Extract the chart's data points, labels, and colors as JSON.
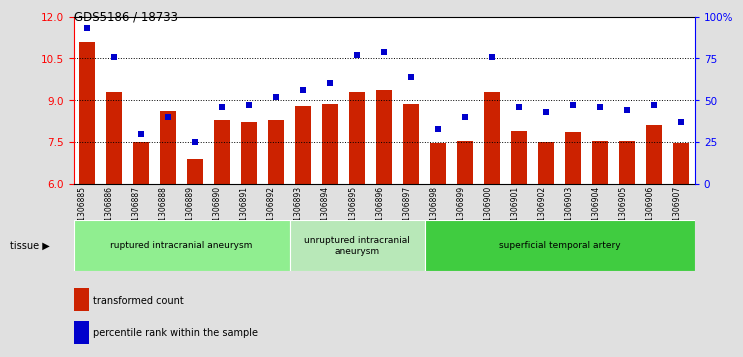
{
  "title": "GDS5186 / 18733",
  "samples": [
    "GSM1306885",
    "GSM1306886",
    "GSM1306887",
    "GSM1306888",
    "GSM1306889",
    "GSM1306890",
    "GSM1306891",
    "GSM1306892",
    "GSM1306893",
    "GSM1306894",
    "GSM1306895",
    "GSM1306896",
    "GSM1306897",
    "GSM1306898",
    "GSM1306899",
    "GSM1306900",
    "GSM1306901",
    "GSM1306902",
    "GSM1306903",
    "GSM1306904",
    "GSM1306905",
    "GSM1306906",
    "GSM1306907"
  ],
  "bar_values": [
    11.1,
    9.3,
    7.5,
    8.6,
    6.9,
    8.3,
    8.2,
    8.3,
    8.8,
    8.85,
    9.3,
    9.35,
    8.85,
    7.45,
    7.55,
    9.3,
    7.9,
    7.5,
    7.85,
    7.55,
    7.55,
    8.1,
    7.45
  ],
  "percentile_values": [
    93,
    76,
    30,
    40,
    25,
    46,
    47,
    52,
    56,
    60,
    77,
    79,
    64,
    33,
    40,
    76,
    46,
    43,
    47,
    46,
    44,
    47,
    37
  ],
  "groups": [
    {
      "label": "ruptured intracranial aneurysm",
      "start": 0,
      "end": 8,
      "color": "#90EE90"
    },
    {
      "label": "unruptured intracranial\naneurysm",
      "start": 8,
      "end": 13,
      "color": "#b8e8b8"
    },
    {
      "label": "superficial temporal artery",
      "start": 13,
      "end": 23,
      "color": "#40CC40"
    }
  ],
  "bar_color": "#CC2200",
  "dot_color": "#0000CC",
  "ylim_left": [
    6,
    12
  ],
  "ylim_right": [
    0,
    100
  ],
  "yticks_left": [
    6,
    7.5,
    9,
    10.5,
    12
  ],
  "yticks_right": [
    0,
    25,
    50,
    75,
    100
  ],
  "ytick_labels_right": [
    "0",
    "25",
    "50",
    "75",
    "100%"
  ],
  "grid_values": [
    7.5,
    9.0,
    10.5
  ],
  "background_color": "#E0E0E0",
  "plot_bg_color": "#FFFFFF",
  "bar_width": 0.6
}
